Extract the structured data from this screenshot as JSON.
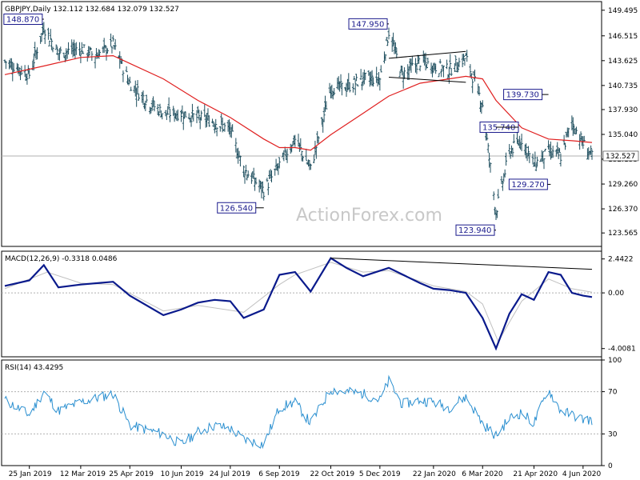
{
  "chart_data": [
    {
      "type": "candlestick",
      "header": "GBPJPY,Daily  132.112 132.684 132.079 132.527",
      "watermark": "ActionForex.com",
      "ylim": [
        122.0,
        150.5
      ],
      "y_ticks": [
        "149.495",
        "146.515",
        "143.625",
        "140.735",
        "137.930",
        "135.040",
        "132.155",
        "129.260",
        "126.370",
        "123.565"
      ],
      "current_price": "132.527",
      "x_ticks": [
        "25 Jan 2019",
        "12 Mar 2019",
        "25 Apr 2019",
        "10 Jun 2019",
        "24 Jul 2019",
        "6 Sep 2019",
        "22 Oct 2019",
        "5 Dec 2019",
        "22 Jan 2020",
        "6 Mar 2020",
        "21 Apr 2020",
        "4 Jun 2020"
      ],
      "annotations": [
        {
          "text": "148.870",
          "value": 148.87,
          "date": "2019-02-07"
        },
        {
          "text": "147.950",
          "value": 147.95,
          "date": "2019-12-13"
        },
        {
          "text": "139.730",
          "value": 139.73,
          "date": "2020-05-04"
        },
        {
          "text": "135.740",
          "value": 135.74,
          "date": "2020-03-18"
        },
        {
          "text": "129.270",
          "value": 129.27,
          "date": "2020-05-06"
        },
        {
          "text": "126.540",
          "value": 126.54,
          "date": "2019-08-23"
        },
        {
          "text": "123.940",
          "value": 123.94,
          "date": "2020-03-18"
        }
      ],
      "close_series": {
        "x": [
          "2019-01-03",
          "2019-01-25",
          "2019-02-07",
          "2019-02-20",
          "2019-03-12",
          "2019-03-25",
          "2019-04-10",
          "2019-04-25",
          "2019-05-10",
          "2019-05-25",
          "2019-06-10",
          "2019-06-25",
          "2019-07-10",
          "2019-07-24",
          "2019-08-05",
          "2019-08-23",
          "2019-09-06",
          "2019-09-20",
          "2019-10-04",
          "2019-10-22",
          "2019-11-05",
          "2019-11-20",
          "2019-12-05",
          "2019-12-13",
          "2019-12-25",
          "2020-01-10",
          "2020-01-22",
          "2020-02-05",
          "2020-02-20",
          "2020-03-06",
          "2020-03-18",
          "2020-03-30",
          "2020-04-10",
          "2020-04-21",
          "2020-05-04",
          "2020-05-15",
          "2020-05-25",
          "2020-06-04",
          "2020-06-12"
        ],
        "values": [
          143.6,
          142.0,
          147.5,
          144.5,
          145.0,
          144.2,
          145.5,
          141.0,
          139.0,
          137.5,
          137.5,
          137.0,
          136.5,
          135.5,
          131.0,
          128.5,
          131.5,
          134.5,
          131.0,
          140.5,
          140.5,
          141.5,
          141.5,
          147.0,
          142.0,
          143.5,
          143.0,
          142.5,
          144.0,
          138.5,
          126.0,
          133.0,
          134.5,
          131.5,
          133.0,
          132.5,
          136.5,
          134.0,
          132.5
        ]
      },
      "ma_series": {
        "x": [
          "2019-01-03",
          "2019-02-07",
          "2019-03-12",
          "2019-04-10",
          "2019-04-25",
          "2019-05-25",
          "2019-06-25",
          "2019-07-24",
          "2019-08-23",
          "2019-09-06",
          "2019-09-20",
          "2019-10-04",
          "2019-10-22",
          "2019-11-20",
          "2019-12-13",
          "2020-01-10",
          "2020-02-05",
          "2020-02-20",
          "2020-03-06",
          "2020-03-18",
          "2020-04-10",
          "2020-05-04",
          "2020-05-25",
          "2020-06-12"
        ],
        "values": [
          142.0,
          143.0,
          144.0,
          144.2,
          143.3,
          141.5,
          139.0,
          137.0,
          134.5,
          133.5,
          133.5,
          133.2,
          135.0,
          137.5,
          139.5,
          141.0,
          141.5,
          141.8,
          141.5,
          139.0,
          135.8,
          134.5,
          134.3,
          134.1
        ]
      },
      "channel_lines": [
        {
          "x": [
            "2019-12-13",
            "2020-02-20"
          ],
          "values": [
            143.9,
            144.7
          ]
        },
        {
          "x": [
            "2019-12-13",
            "2020-02-20"
          ],
          "values": [
            141.7,
            141.1
          ]
        }
      ]
    },
    {
      "type": "line",
      "header": "MACD(12,26,9) -0.3318 0.0486",
      "ylim": [
        -4.6,
        3.0
      ],
      "y_ticks": [
        "2.4422",
        "0.00",
        "-4.0081"
      ],
      "macd": {
        "x": [
          "2019-01-03",
          "2019-01-25",
          "2019-02-07",
          "2019-02-20",
          "2019-03-12",
          "2019-04-10",
          "2019-04-25",
          "2019-05-25",
          "2019-06-10",
          "2019-06-25",
          "2019-07-10",
          "2019-07-24",
          "2019-08-05",
          "2019-08-23",
          "2019-09-06",
          "2019-09-20",
          "2019-10-04",
          "2019-10-22",
          "2019-11-05",
          "2019-11-20",
          "2019-12-13",
          "2020-01-10",
          "2020-01-22",
          "2020-02-05",
          "2020-02-20",
          "2020-03-06",
          "2020-03-18",
          "2020-03-30",
          "2020-04-10",
          "2020-04-21",
          "2020-05-04",
          "2020-05-15",
          "2020-05-25",
          "2020-06-04",
          "2020-06-12"
        ],
        "values": [
          0.5,
          0.9,
          2.0,
          0.4,
          0.6,
          0.8,
          -0.2,
          -1.6,
          -1.2,
          -0.7,
          -0.5,
          -0.6,
          -1.8,
          -1.2,
          1.3,
          1.5,
          0.1,
          2.5,
          1.8,
          1.2,
          1.8,
          0.7,
          0.3,
          0.2,
          0.0,
          -1.8,
          -4.0,
          -1.5,
          -0.1,
          -0.5,
          1.5,
          1.3,
          0.0,
          -0.2,
          -0.3
        ]
      },
      "signal": {
        "x": [
          "2019-01-03",
          "2019-02-10",
          "2019-03-12",
          "2019-04-10",
          "2019-05-25",
          "2019-06-25",
          "2019-08-05",
          "2019-09-06",
          "2019-09-20",
          "2019-10-22",
          "2019-11-20",
          "2019-12-13",
          "2020-01-22",
          "2020-02-20",
          "2020-03-06",
          "2020-03-20",
          "2020-04-10",
          "2020-05-04",
          "2020-05-25",
          "2020-06-12"
        ],
        "values": [
          0.3,
          1.5,
          0.7,
          0.6,
          -1.3,
          -0.9,
          -1.4,
          0.6,
          1.3,
          2.2,
          1.5,
          1.6,
          0.5,
          0.1,
          -0.8,
          -3.5,
          -0.6,
          1.0,
          0.3,
          0.05
        ]
      },
      "trend_line": {
        "x": [
          "2019-10-22",
          "2020-06-12"
        ],
        "values": [
          2.5,
          1.7
        ]
      }
    },
    {
      "type": "line",
      "header": "RSI(14) 43.4295",
      "ylim": [
        0,
        100
      ],
      "y_ticks": [
        "100",
        "70",
        "30",
        "0"
      ],
      "rsi": {
        "x": [
          "2019-01-03",
          "2019-01-25",
          "2019-02-07",
          "2019-02-20",
          "2019-03-12",
          "2019-04-10",
          "2019-04-25",
          "2019-05-25",
          "2019-06-10",
          "2019-06-25",
          "2019-07-10",
          "2019-07-24",
          "2019-08-05",
          "2019-08-23",
          "2019-09-06",
          "2019-09-20",
          "2019-10-04",
          "2019-10-22",
          "2019-11-05",
          "2019-11-20",
          "2019-12-05",
          "2019-12-13",
          "2019-12-25",
          "2020-01-10",
          "2020-01-22",
          "2020-02-05",
          "2020-02-20",
          "2020-03-06",
          "2020-03-18",
          "2020-03-30",
          "2020-04-10",
          "2020-04-21",
          "2020-05-04",
          "2020-05-15",
          "2020-05-25",
          "2020-06-04",
          "2020-06-12"
        ],
        "values": [
          62,
          48,
          70,
          52,
          60,
          68,
          38,
          30,
          20,
          32,
          38,
          35,
          25,
          20,
          55,
          60,
          40,
          72,
          70,
          68,
          62,
          80,
          58,
          62,
          60,
          55,
          65,
          40,
          28,
          45,
          50,
          40,
          72,
          52,
          48,
          44,
          43
        ]
      }
    }
  ]
}
